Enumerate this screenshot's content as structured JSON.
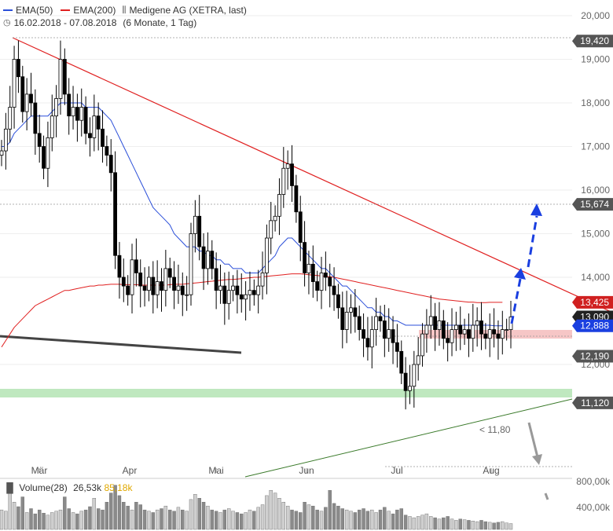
{
  "legend": {
    "ema50_label": "EMA(50)",
    "ema200_label": "EMA(200)",
    "instrument": "Medigene AG (XETRA, last)",
    "date_range": "16.02.2018 - 07.08.2018",
    "period": "(6 Monate, 1 Tag)"
  },
  "volume_legend": {
    "label": "Volume(28)",
    "value1": "26,53k",
    "value2": "85,18k"
  },
  "annotation": {
    "support_note": "< 11,80"
  },
  "colors": {
    "ema50": "#2b4fd9",
    "ema200": "#e02020",
    "candle": "#000000",
    "resistance_zone": "#f4b8b8",
    "support_zone": "#b8e6b8",
    "price_tag_dark": "#222222",
    "price_tag_gray": "#555555",
    "price_tag_red": "#d02020",
    "price_tag_blue": "#1a3fe0",
    "arrow_blue": "#1a3fe0",
    "arrow_gray": "#999999"
  },
  "chart_data": {
    "type": "candlestick",
    "x_labels": [
      "Mär",
      "Apr",
      "Mai",
      "Jun",
      "Jul",
      "Aug"
    ],
    "y_ticks": [
      "20,000",
      "19,000",
      "18,000",
      "17,000",
      "16,000",
      "15,000",
      "14,000",
      "12,000"
    ],
    "volume_ticks": [
      "800,00k",
      "400,00k"
    ],
    "ylim": [
      11,
      20.1
    ],
    "price_tags": [
      {
        "label": "19,420",
        "value": 19.42,
        "color": "price_tag_gray"
      },
      {
        "label": "15,674",
        "value": 15.674,
        "color": "price_tag_gray"
      },
      {
        "label": "13,425",
        "value": 13.425,
        "color": "price_tag_red"
      },
      {
        "label": "13,090",
        "value": 13.09,
        "color": "price_tag_dark"
      },
      {
        "label": "12,888",
        "value": 12.888,
        "color": "price_tag_blue"
      },
      {
        "label": "12,190",
        "value": 12.19,
        "color": "price_tag_gray"
      },
      {
        "label": "11,120",
        "value": 11.12,
        "color": "price_tag_gray"
      }
    ],
    "series_close": [
      16.9,
      17.4,
      17.9,
      19.0,
      18.6,
      17.8,
      18.2,
      18.0,
      17.3,
      17.0,
      16.5,
      17.2,
      17.7,
      18.1,
      19.0,
      18.2,
      17.7,
      17.9,
      17.6,
      17.9,
      17.3,
      17.2,
      17.7,
      17.4,
      17.0,
      16.8,
      16.4,
      14.5,
      14.0,
      13.8,
      13.6,
      14.4,
      14.1,
      13.8,
      13.7,
      14.0,
      13.6,
      13.9,
      13.7,
      14.2,
      14.0,
      13.7,
      13.8,
      13.6,
      13.6,
      15.0,
      15.4,
      14.7,
      14.2,
      14.6,
      14.2,
      13.7,
      13.8,
      13.4,
      13.7,
      13.8,
      13.6,
      13.5,
      13.6,
      13.7,
      13.6,
      13.8,
      14.1,
      14.9,
      15.3,
      15.4,
      15.9,
      16.5,
      16.6,
      16.1,
      15.5,
      14.8,
      14.1,
      14.3,
      13.9,
      13.7,
      14.1,
      14.0,
      13.8,
      13.6,
      13.3,
      12.8,
      13.2,
      13.3,
      13.1,
      12.8,
      12.6,
      12.4,
      12.8,
      13.1,
      13.0,
      12.6,
      12.8,
      12.5,
      12.3,
      11.8,
      11.4,
      11.5,
      12.0,
      12.2,
      12.7,
      12.9,
      13.1,
      12.8,
      13.0,
      12.6,
      12.5,
      12.8,
      12.9,
      12.7,
      12.8,
      12.6,
      12.9,
      13.0,
      12.7,
      12.6,
      12.8,
      12.7,
      12.6,
      12.8,
      12.8,
      13.09
    ],
    "ema50": [
      17.0,
      17.0,
      17.1,
      17.3,
      17.4,
      17.5,
      17.6,
      17.7,
      17.7,
      17.7,
      17.7,
      17.7,
      17.8,
      17.9,
      18.0,
      18.0,
      18.0,
      18.0,
      18.0,
      18.0,
      17.9,
      17.9,
      17.9,
      17.9,
      17.8,
      17.7,
      17.6,
      17.4,
      17.2,
      17.0,
      16.8,
      16.6,
      16.4,
      16.2,
      16.0,
      15.8,
      15.6,
      15.5,
      15.4,
      15.3,
      15.2,
      15.0,
      14.9,
      14.8,
      14.7,
      14.7,
      14.7,
      14.6,
      14.6,
      14.5,
      14.5,
      14.4,
      14.4,
      14.3,
      14.3,
      14.2,
      14.2,
      14.2,
      14.1,
      14.1,
      14.1,
      14.1,
      14.2,
      14.3,
      14.4,
      14.5,
      14.7,
      14.8,
      14.9,
      14.9,
      14.8,
      14.7,
      14.6,
      14.5,
      14.4,
      14.3,
      14.2,
      14.2,
      14.1,
      14.0,
      13.9,
      13.8,
      13.8,
      13.7,
      13.6,
      13.5,
      13.4,
      13.3,
      13.3,
      13.2,
      13.2,
      13.1,
      13.1,
      13.0,
      13.0,
      12.95,
      12.9,
      12.9,
      12.9,
      12.9,
      12.9,
      12.9,
      12.9,
      12.9,
      12.9,
      12.9,
      12.9,
      12.9,
      12.9,
      12.9,
      12.9,
      12.9,
      12.9,
      12.9,
      12.9,
      12.9,
      12.9,
      12.888,
      12.888,
      12.888
    ],
    "ema200": [
      12.4,
      12.55,
      12.7,
      12.85,
      12.95,
      13.05,
      13.15,
      13.25,
      13.35,
      13.4,
      13.45,
      13.5,
      13.55,
      13.6,
      13.65,
      13.7,
      13.7,
      13.72,
      13.74,
      13.76,
      13.78,
      13.8,
      13.8,
      13.82,
      13.82,
      13.83,
      13.84,
      13.84,
      13.84,
      13.83,
      13.83,
      13.83,
      13.83,
      13.82,
      13.82,
      13.82,
      13.82,
      13.82,
      13.82,
      13.82,
      13.83,
      13.84,
      13.84,
      13.84,
      13.85,
      13.86,
      13.87,
      13.88,
      13.89,
      13.9,
      13.91,
      13.92,
      13.93,
      13.94,
      13.95,
      13.95,
      13.96,
      13.97,
      13.98,
      13.99,
      14.0,
      14.0,
      14.01,
      14.02,
      14.03,
      14.04,
      14.05,
      14.06,
      14.07,
      14.08,
      14.08,
      14.08,
      14.07,
      14.06,
      14.05,
      14.04,
      14.03,
      14.02,
      14.01,
      14.0,
      13.98,
      13.96,
      13.94,
      13.92,
      13.9,
      13.88,
      13.86,
      13.84,
      13.82,
      13.8,
      13.78,
      13.76,
      13.74,
      13.72,
      13.7,
      13.68,
      13.66,
      13.64,
      13.62,
      13.6,
      13.58,
      13.56,
      13.54,
      13.52,
      13.5,
      13.49,
      13.48,
      13.47,
      13.46,
      13.45,
      13.44,
      13.43,
      13.43,
      13.42,
      13.42,
      13.42,
      13.425,
      13.425,
      13.425,
      13.425
    ],
    "volume": [
      300,
      280,
      600,
      420,
      350,
      500,
      260,
      320,
      240,
      300,
      250,
      220,
      260,
      280,
      300,
      500,
      320,
      260,
      240,
      280,
      300,
      350,
      480,
      320,
      300,
      420,
      560,
      680,
      520,
      420,
      360,
      300,
      420,
      380,
      300,
      280,
      260,
      300,
      320,
      360,
      300,
      280,
      340,
      300,
      280,
      460,
      540,
      480,
      420,
      360,
      300,
      280,
      260,
      300,
      320,
      280,
      260,
      240,
      260,
      300,
      280,
      340,
      380,
      520,
      600,
      560,
      480,
      420,
      360,
      300,
      280,
      260,
      420,
      380,
      360,
      300,
      280,
      340,
      600,
      400,
      360,
      320,
      300,
      280,
      260,
      300,
      320,
      280,
      300,
      260,
      300,
      340,
      280,
      240,
      300,
      320,
      220,
      200,
      180,
      200,
      220,
      240,
      200,
      180,
      160,
      180,
      200,
      160,
      140,
      160,
      150,
      140,
      130,
      120,
      140,
      120,
      110,
      100,
      110,
      120,
      100,
      90
    ]
  }
}
